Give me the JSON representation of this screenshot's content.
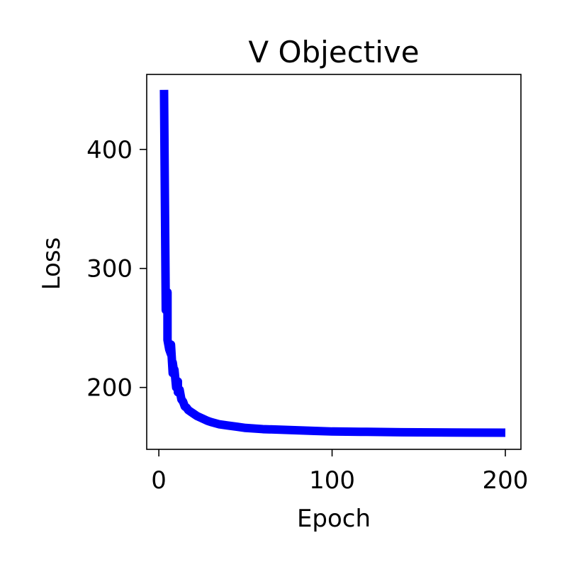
{
  "chart_data": {
    "type": "line",
    "title": "V Objective",
    "xlabel": "Epoch",
    "ylabel": "Loss",
    "xlim": [
      -7,
      209
    ],
    "ylim": [
      148,
      463
    ],
    "xticks": [
      0,
      100,
      200
    ],
    "yticks": [
      200,
      300,
      400
    ],
    "grid": false,
    "legend": false,
    "series": [
      {
        "color": "#0000ff",
        "x": [
          3,
          4,
          5,
          5,
          6,
          7,
          7,
          8,
          8,
          9,
          9,
          10,
          11,
          11,
          12,
          13,
          14,
          15,
          16,
          17,
          18,
          20,
          22,
          25,
          28,
          30,
          35,
          40,
          45,
          50,
          60,
          70,
          80,
          90,
          100,
          120,
          140,
          160,
          180,
          200
        ],
        "y": [
          450,
          265,
          280,
          240,
          232,
          228,
          236,
          212,
          221,
          211,
          215,
          200,
          205,
          196,
          198,
          190,
          188,
          184,
          183,
          181,
          180,
          178,
          176,
          174,
          172,
          171,
          169,
          168,
          167,
          166,
          165,
          164.5,
          164,
          163.5,
          163,
          162.7,
          162.4,
          162.2,
          162.1,
          162
        ]
      }
    ]
  }
}
